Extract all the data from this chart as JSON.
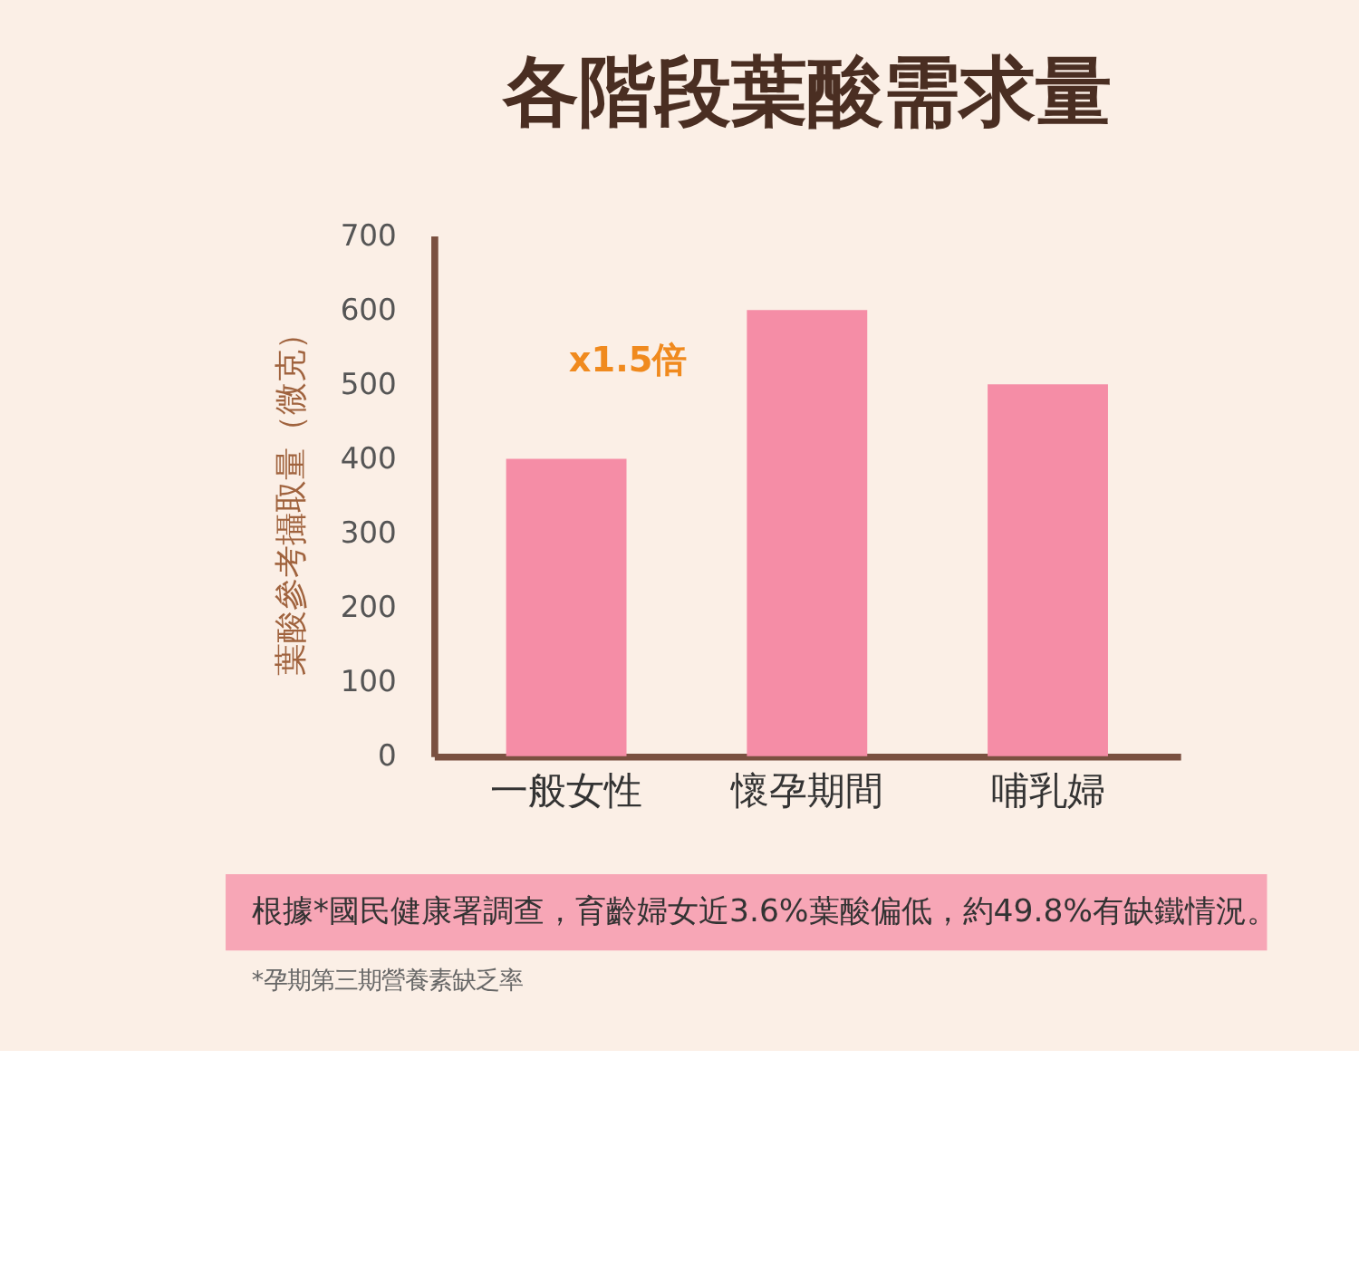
{
  "chart_data": {
    "type": "bar",
    "title": "各階段葉酸需求量",
    "ylabel": "葉酸參考攝取量（微克）",
    "categories": [
      "一般女性",
      "懷孕期間",
      "哺乳婦"
    ],
    "values": [
      400,
      600,
      500
    ],
    "color": "#f58da6",
    "ylim": [
      0,
      700
    ],
    "yticks": [
      0,
      100,
      200,
      300,
      400,
      500,
      600,
      700
    ],
    "grid": false,
    "annotations": [
      "x1.5倍",
      "根據*國民健康署調查，育齡婦女近3.6%葉酸偏低，約49.8%有缺鐵情況。",
      "*孕期第三期營養素缺乏率"
    ]
  }
}
